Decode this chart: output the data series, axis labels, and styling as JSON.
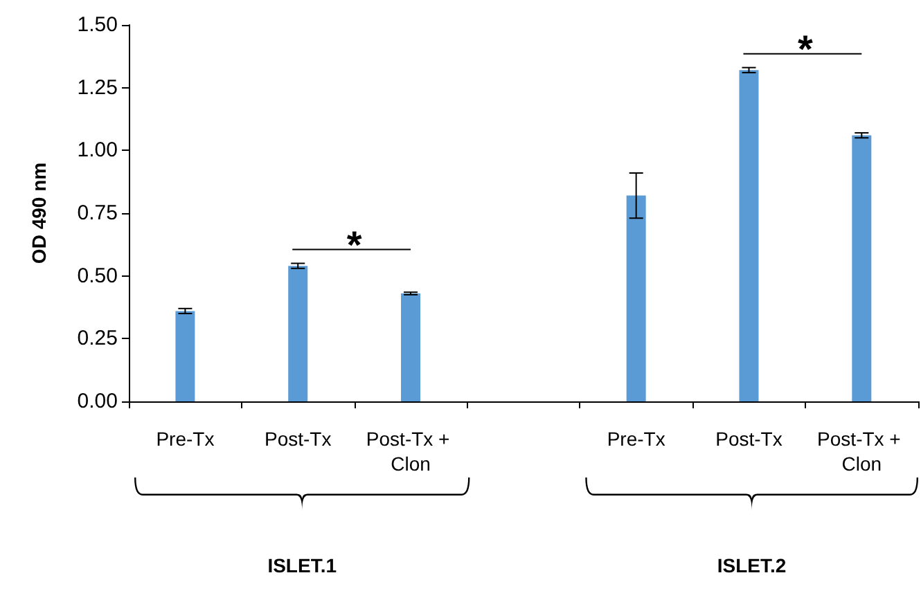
{
  "chart_data": {
    "type": "bar",
    "ylabel": "OD 490 nm",
    "categories": [
      "Pre-Tx",
      "Post-Tx",
      "Post-Tx + Clon",
      null,
      "Pre-Tx",
      "Post-Tx",
      "Post-Tx + Clon"
    ],
    "series": [
      {
        "color": "#5b9bd5",
        "values": [
          0.36,
          0.54,
          0.43,
          null,
          0.82,
          1.32,
          1.06
        ],
        "errors": [
          0.01,
          0.01,
          0.005,
          null,
          0.09,
          0.01,
          0.01
        ]
      }
    ],
    "ylim": [
      0,
      1.5
    ],
    "yticks": [
      {
        "value": 0,
        "label": "0.00"
      },
      {
        "value": 0.25,
        "label": "0.25"
      },
      {
        "value": 0.5,
        "label": "0.50"
      },
      {
        "value": 0.75,
        "label": "0.75"
      },
      {
        "value": 1,
        "label": "1.00"
      },
      {
        "value": 1.25,
        "label": "1.25"
      },
      {
        "value": 1.5,
        "label": "1.50"
      }
    ],
    "annotations": [
      "*",
      "*",
      "ISLET.1",
      "ISLET.2"
    ],
    "grid": false
  }
}
